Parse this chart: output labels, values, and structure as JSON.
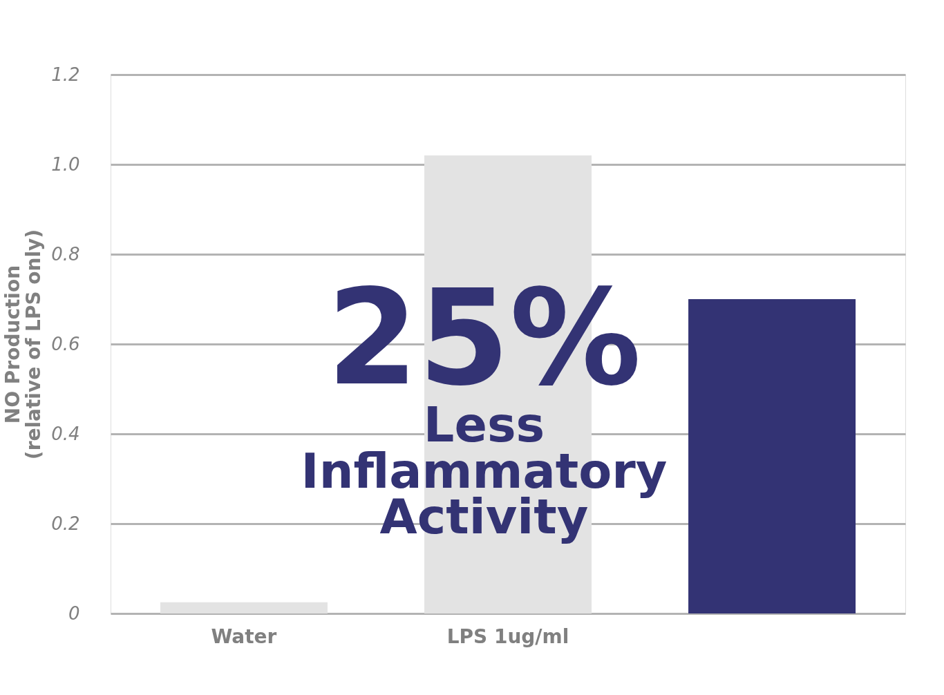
{
  "chart_data": {
    "type": "bar",
    "ylabel": "NO Production\n(relative of LPS only)",
    "categories": [
      "Water",
      "LPS 1ug/ml",
      null
    ],
    "values": [
      0.025,
      1.02,
      0.7
    ],
    "colors": [
      "#e3e3e3",
      "#e3e3e3",
      "#333374"
    ],
    "ylim": [
      0,
      1.2
    ],
    "yticks": [
      0,
      0.2,
      0.4,
      0.6,
      0.8,
      {
        "value": 1.0,
        "label": "1.0"
      },
      1.2
    ],
    "grid": "y",
    "annotations": [
      "25%",
      "Less\nInflammatory\nActivity"
    ]
  }
}
